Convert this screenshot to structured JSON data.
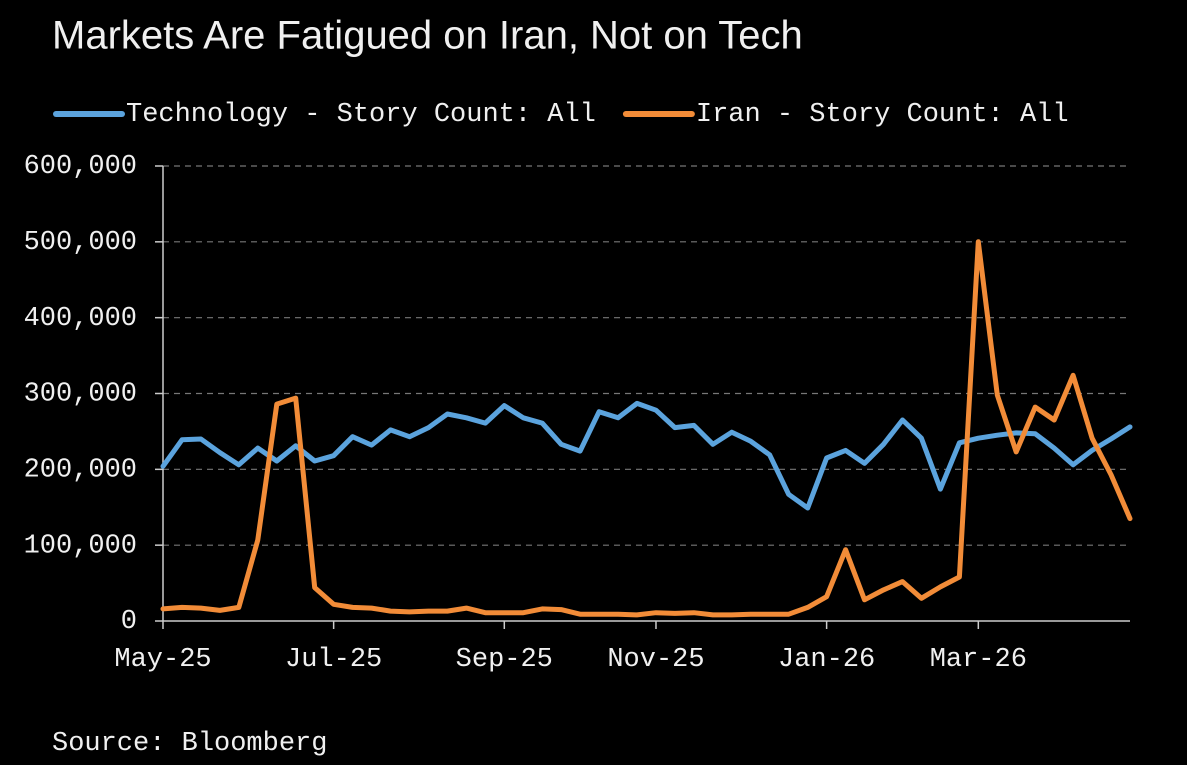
{
  "chart_data": {
    "type": "line",
    "title": "Markets Are Fatigued on Iran, Not on Tech",
    "source": "Source: Bloomberg",
    "categories": [
      "May-25",
      null,
      null,
      null,
      null,
      null,
      null,
      null,
      null,
      "Jul-25",
      null,
      null,
      null,
      null,
      null,
      null,
      null,
      null,
      "Sep-25",
      null,
      null,
      null,
      null,
      null,
      null,
      null,
      "Nov-25",
      null,
      null,
      null,
      null,
      null,
      null,
      null,
      null,
      "Jan-26",
      null,
      null,
      null,
      null,
      null,
      null,
      null,
      "Mar-26",
      null,
      null,
      null,
      null,
      null,
      null,
      null,
      null
    ],
    "series": [
      {
        "name": "Technology - Story Count: All",
        "color": "#5ba3dd",
        "values": [
          204000,
          239000,
          240000,
          222000,
          206000,
          228000,
          211000,
          231000,
          211000,
          218000,
          243000,
          232000,
          252000,
          243000,
          255000,
          273000,
          268000,
          261000,
          284000,
          268000,
          261000,
          233000,
          224000,
          276000,
          268000,
          287000,
          278000,
          255000,
          258000,
          233000,
          249000,
          237000,
          219000,
          167000,
          149000,
          215000,
          225000,
          208000,
          233000,
          265000,
          241000,
          174000,
          235000,
          241000,
          245000,
          248000,
          247000,
          228000,
          206000,
          225000,
          240000,
          256000
        ]
      },
      {
        "name": "Iran - Story Count: All",
        "color": "#f28c38",
        "values": [
          16000,
          18000,
          17000,
          14000,
          18000,
          107000,
          286000,
          294000,
          44000,
          22000,
          18000,
          17000,
          13000,
          12000,
          13000,
          13000,
          17000,
          11000,
          11000,
          11000,
          16000,
          15000,
          9000,
          9000,
          9000,
          8000,
          11000,
          10000,
          11000,
          8000,
          8000,
          9000,
          9000,
          9000,
          18000,
          32000,
          94000,
          28000,
          41000,
          52000,
          30000,
          45000,
          58000,
          500000,
          298000,
          223000,
          282000,
          265000,
          324000,
          241000,
          193000,
          135000
        ]
      }
    ],
    "ylim": [
      0,
      600000
    ],
    "yticks": [
      0,
      {
        "value": 100000,
        "label": "100,000"
      },
      {
        "value": 200000,
        "label": "200,000"
      },
      {
        "value": 300000,
        "label": "300,000"
      },
      {
        "value": 400000,
        "label": "400,000"
      },
      {
        "value": 500000,
        "label": "500,000"
      },
      {
        "value": 600000,
        "label": "600,000"
      }
    ],
    "grid": true,
    "legend": "top"
  }
}
